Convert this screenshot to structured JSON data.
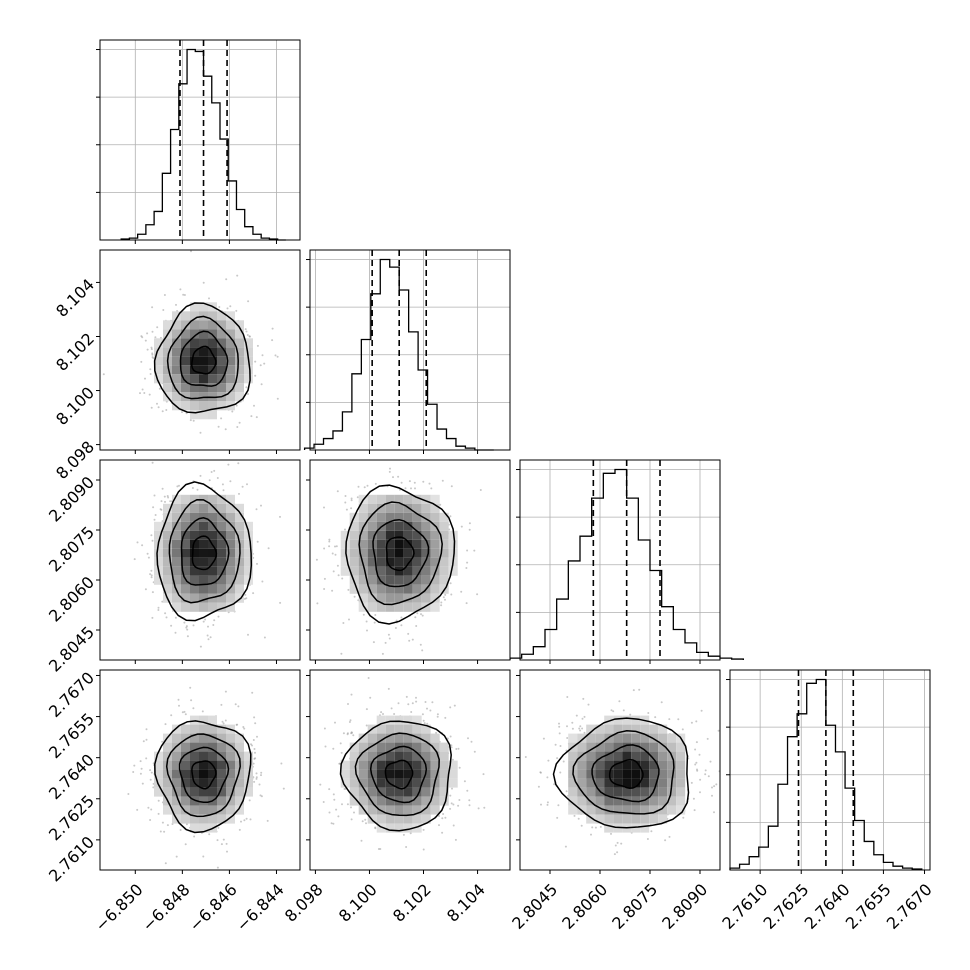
{
  "chart_data": {
    "type": "corner",
    "grid": true,
    "colors": {
      "line": "#000000",
      "grid": "#b0b0b0",
      "scatter": "#9a9a9a",
      "density_dark": "#111111"
    },
    "parameters": [
      {
        "id": "p0",
        "ticks": [
          -6.85,
          -6.848,
          -6.846,
          -6.844
        ],
        "tick_labels": [
          "−6.850",
          "−6.848",
          "−6.846",
          "−6.844"
        ],
        "range": [
          -6.8515,
          -6.843
        ],
        "median": -6.8471,
        "q16": -6.8481,
        "q84": -6.8461,
        "sigma": 0.001
      },
      {
        "id": "p1",
        "ticks": [
          8.098,
          8.1,
          8.102,
          8.104
        ],
        "tick_labels": [
          "8.098",
          "8.100",
          "8.102",
          "8.104"
        ],
        "range": [
          8.0978,
          8.1052
        ],
        "median": 8.1011,
        "q16": 8.1001,
        "q84": 8.1021,
        "sigma": 0.001
      },
      {
        "id": "p2",
        "ticks": [
          2.8045,
          2.806,
          2.8075,
          2.809
        ],
        "tick_labels": [
          "2.8045",
          "2.8060",
          "2.8075",
          "2.8090"
        ],
        "range": [
          2.8036,
          2.8096
        ],
        "median": 2.8068,
        "q16": 2.8058,
        "q84": 2.8078,
        "sigma": 0.001
      },
      {
        "id": "p3",
        "ticks": [
          2.761,
          2.7625,
          2.764,
          2.7655,
          2.767
        ],
        "tick_labels": [
          "2.7610",
          "2.7625",
          "2.7640",
          "2.7655",
          "2.7670"
        ],
        "range": [
          2.7599,
          2.7672
        ],
        "median": 2.7634,
        "q16": 2.7624,
        "q84": 2.7644,
        "sigma": 0.001
      }
    ],
    "histograms": [
      {
        "param": "p0",
        "bins": 20,
        "counts": [
          0.5,
          1,
          3,
          8,
          15,
          35,
          58,
          82,
          100,
          99,
          86,
          72,
          53,
          31,
          16,
          7,
          3,
          1,
          0.5,
          0
        ]
      },
      {
        "param": "p1",
        "bins": 20,
        "counts": [
          1,
          3,
          6,
          10,
          20,
          40,
          58,
          82,
          100,
          96,
          84,
          62,
          42,
          24,
          11,
          6,
          2,
          1,
          0,
          0
        ]
      },
      {
        "param": "p2",
        "bins": 20,
        "counts": [
          1,
          3,
          7,
          16,
          32,
          52,
          65,
          85,
          98,
          100,
          85,
          63,
          47,
          28,
          16,
          9,
          4,
          2,
          1,
          0.5
        ]
      },
      {
        "param": "p3",
        "bins": 20,
        "counts": [
          1,
          3,
          7,
          12,
          23,
          45,
          70,
          82,
          98,
          100,
          76,
          62,
          43,
          26,
          15,
          8,
          4,
          2,
          1,
          0.5
        ]
      }
    ],
    "pairs": [
      {
        "x": "p0",
        "y": "p1"
      },
      {
        "x": "p0",
        "y": "p2"
      },
      {
        "x": "p1",
        "y": "p2"
      },
      {
        "x": "p0",
        "y": "p3"
      },
      {
        "x": "p1",
        "y": "p3"
      },
      {
        "x": "p2",
        "y": "p3"
      }
    ],
    "contour_sigma_levels": [
      0.5,
      1.0,
      1.5,
      2.0
    ]
  }
}
